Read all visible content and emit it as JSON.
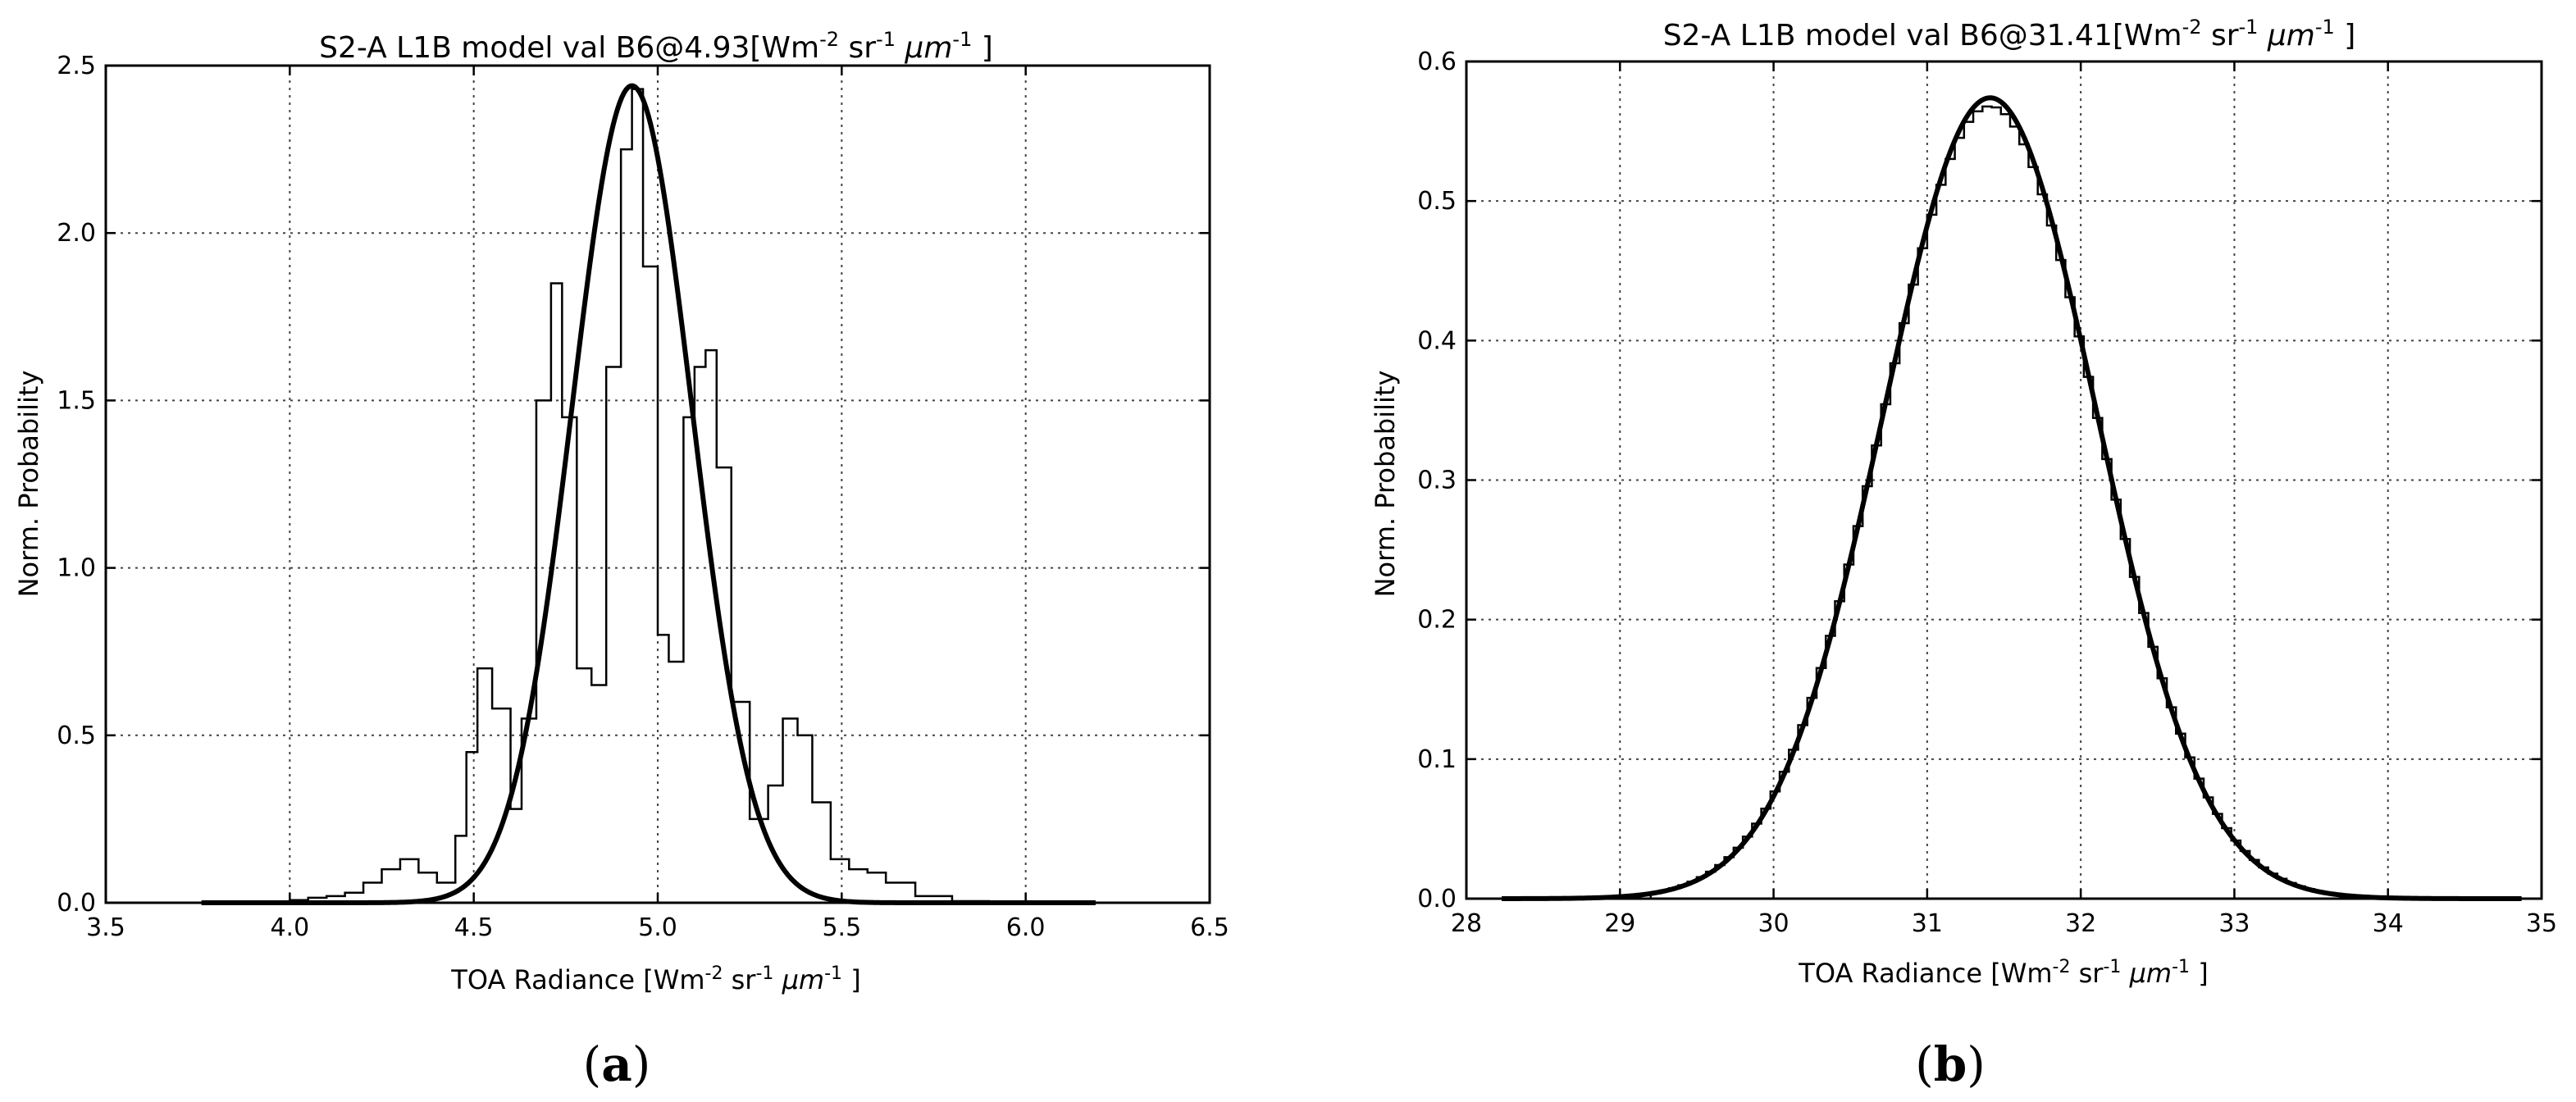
{
  "figure": {
    "panels": [
      {
        "label_open": "(",
        "label_letter": "a",
        "label_close": ")"
      },
      {
        "label_open": "(",
        "label_letter": "b",
        "label_close": ")"
      }
    ]
  },
  "chart_data": [
    {
      "type": "line",
      "title_prefix": "S2-A L1B model val B6@4.93[Wm",
      "title_sup1": "-2",
      "title_mid": " sr",
      "title_sup2": "-1",
      "title_mu": " μm",
      "title_sup3": "-1",
      "title_end": " ]",
      "xlabel_prefix": "TOA Radiance [Wm",
      "xlabel_sup1": "-2",
      "xlabel_mid": " sr",
      "xlabel_sup2": "-1",
      "xlabel_mu": " μm",
      "xlabel_sup3": "-1",
      "xlabel_end": " ]",
      "ylabel": "Norm. Probability",
      "xlim": [
        3.5,
        6.5
      ],
      "ylim": [
        0,
        2.5
      ],
      "xticks": [
        3.5,
        4.0,
        4.5,
        5.0,
        5.5,
        6.0,
        6.5
      ],
      "xtick_labels": [
        "3.5",
        "4.0",
        "4.5",
        "5.0",
        "5.5",
        "6.0",
        "6.5"
      ],
      "yticks": [
        0,
        0.5,
        1.0,
        1.5,
        2.0,
        2.5
      ],
      "ytick_labels": [
        "0.0",
        "0.5",
        "1.0",
        "1.5",
        "2.0",
        "2.5"
      ],
      "grid": true,
      "series": [
        {
          "name": "histogram",
          "style": "step",
          "x": [
            3.76,
            3.9,
            4.0,
            4.05,
            4.1,
            4.15,
            4.2,
            4.25,
            4.3,
            4.35,
            4.4,
            4.45,
            4.48,
            4.51,
            4.55,
            4.6,
            4.63,
            4.67,
            4.71,
            4.74,
            4.78,
            4.82,
            4.86,
            4.9,
            4.93,
            4.96,
            5.0,
            5.03,
            5.07,
            5.1,
            5.13,
            5.16,
            5.2,
            5.25,
            5.3,
            5.34,
            5.38,
            5.42,
            5.47,
            5.52,
            5.57,
            5.62,
            5.7,
            5.8,
            5.9,
            6.0,
            6.19
          ],
          "y": [
            0.0,
            0.002,
            0.008,
            0.015,
            0.02,
            0.03,
            0.06,
            0.1,
            0.13,
            0.09,
            0.06,
            0.2,
            0.45,
            0.7,
            0.58,
            0.28,
            0.55,
            1.5,
            1.85,
            1.45,
            0.7,
            0.65,
            1.6,
            2.25,
            2.43,
            1.9,
            0.8,
            0.72,
            1.45,
            1.6,
            1.65,
            1.3,
            0.6,
            0.25,
            0.35,
            0.55,
            0.5,
            0.3,
            0.13,
            0.1,
            0.09,
            0.06,
            0.02,
            0.005,
            0.001,
            0.0,
            0.0
          ]
        },
        {
          "name": "model",
          "style": "gaussian",
          "mean": 4.93,
          "peak": 2.44,
          "sigma": 0.163,
          "xrange": [
            3.76,
            6.19
          ]
        }
      ]
    },
    {
      "type": "line",
      "title_prefix": "S2-A L1B model val B6@31.41[Wm",
      "title_sup1": "-2",
      "title_mid": " sr",
      "title_sup2": "-1",
      "title_mu": " μm",
      "title_sup3": "-1",
      "title_end": " ]",
      "xlabel_prefix": "TOA Radiance [Wm",
      "xlabel_sup1": "-2",
      "xlabel_mid": " sr",
      "xlabel_sup2": "-1",
      "xlabel_mu": " μm",
      "xlabel_sup3": "-1",
      "xlabel_end": " ]",
      "ylabel": "Norm. Probability",
      "xlim": [
        28,
        35
      ],
      "ylim": [
        0,
        0.6
      ],
      "xticks": [
        28,
        29,
        30,
        31,
        32,
        33,
        34,
        35
      ],
      "xtick_labels": [
        "28",
        "29",
        "30",
        "31",
        "32",
        "33",
        "34",
        "35"
      ],
      "yticks": [
        0,
        0.1,
        0.2,
        0.3,
        0.4,
        0.5,
        0.6
      ],
      "ytick_labels": [
        "0.0",
        "0.1",
        "0.2",
        "0.3",
        "0.4",
        "0.5",
        "0.6"
      ],
      "grid": true,
      "series": [
        {
          "name": "histogram",
          "style": "step-gaussian",
          "mean": 31.41,
          "peak": 0.568,
          "sigma": 0.7,
          "xrange": [
            29.2,
            33.7
          ],
          "bin_width": 0.06
        },
        {
          "name": "model",
          "style": "gaussian",
          "mean": 31.41,
          "peak": 0.574,
          "sigma": 0.695,
          "xrange": [
            28.23,
            34.87
          ]
        }
      ]
    }
  ]
}
